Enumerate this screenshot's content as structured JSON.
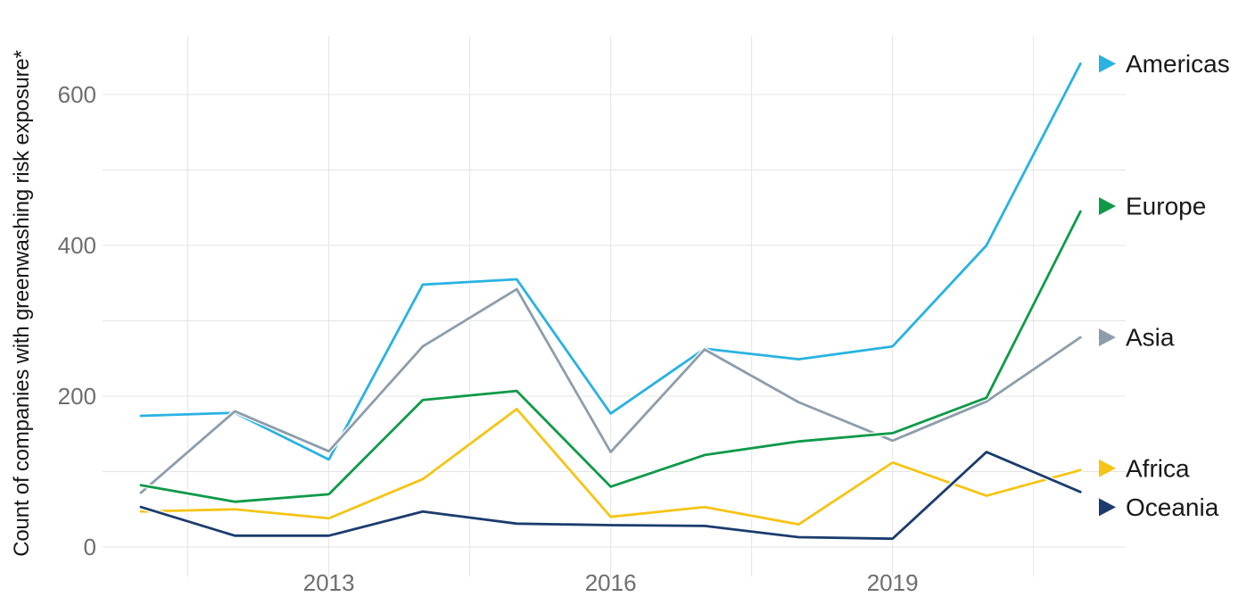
{
  "chart_data": {
    "type": "line",
    "title": "",
    "xlabel": "",
    "ylabel": "Count of companies with greenwashing risk exposure*",
    "x": [
      2011,
      2012,
      2013,
      2014,
      2015,
      2016,
      2017,
      2018,
      2019,
      2020,
      2021
    ],
    "x_tick_years": [
      2013,
      2016,
      2019
    ],
    "x_tick_labels": [
      "2013",
      "2016",
      "2019"
    ],
    "x_gridlines": [
      2011.5,
      2013,
      2014.5,
      2016,
      2017.5,
      2019,
      2020.5
    ],
    "y_ticks": [
      0,
      200,
      400,
      600
    ],
    "y_tick_labels": [
      "0",
      "200",
      "400",
      "600"
    ],
    "y_minor_grid_step": 100,
    "ylim": [
      0,
      660
    ],
    "xlim": [
      2010.6,
      2021.9
    ],
    "grid": "both",
    "legend_position": "right-of-line-ends",
    "series": [
      {
        "name": "Americas",
        "color": "#29b2e2",
        "values": [
          174,
          178,
          116,
          348,
          355,
          177,
          263,
          249,
          266,
          400,
          641
        ]
      },
      {
        "name": "Asia",
        "color": "#8d9dab",
        "values": [
          72,
          180,
          127,
          266,
          342,
          126,
          262,
          192,
          141,
          193,
          278
        ]
      },
      {
        "name": "Europe",
        "color": "#0f9a49",
        "values": [
          82,
          60,
          70,
          195,
          207,
          80,
          122,
          140,
          151,
          198,
          445
        ]
      },
      {
        "name": "Africa",
        "color": "#f5c415",
        "values": [
          47,
          50,
          38,
          90,
          183,
          40,
          53,
          30,
          112,
          68,
          102
        ]
      },
      {
        "name": "Oceania",
        "color": "#1b3c6d",
        "values": [
          53,
          15,
          15,
          47,
          31,
          29,
          28,
          13,
          11,
          126,
          73
        ]
      }
    ],
    "legend_order": [
      "Americas",
      "Europe",
      "Asia",
      "Africa",
      "Oceania"
    ]
  }
}
